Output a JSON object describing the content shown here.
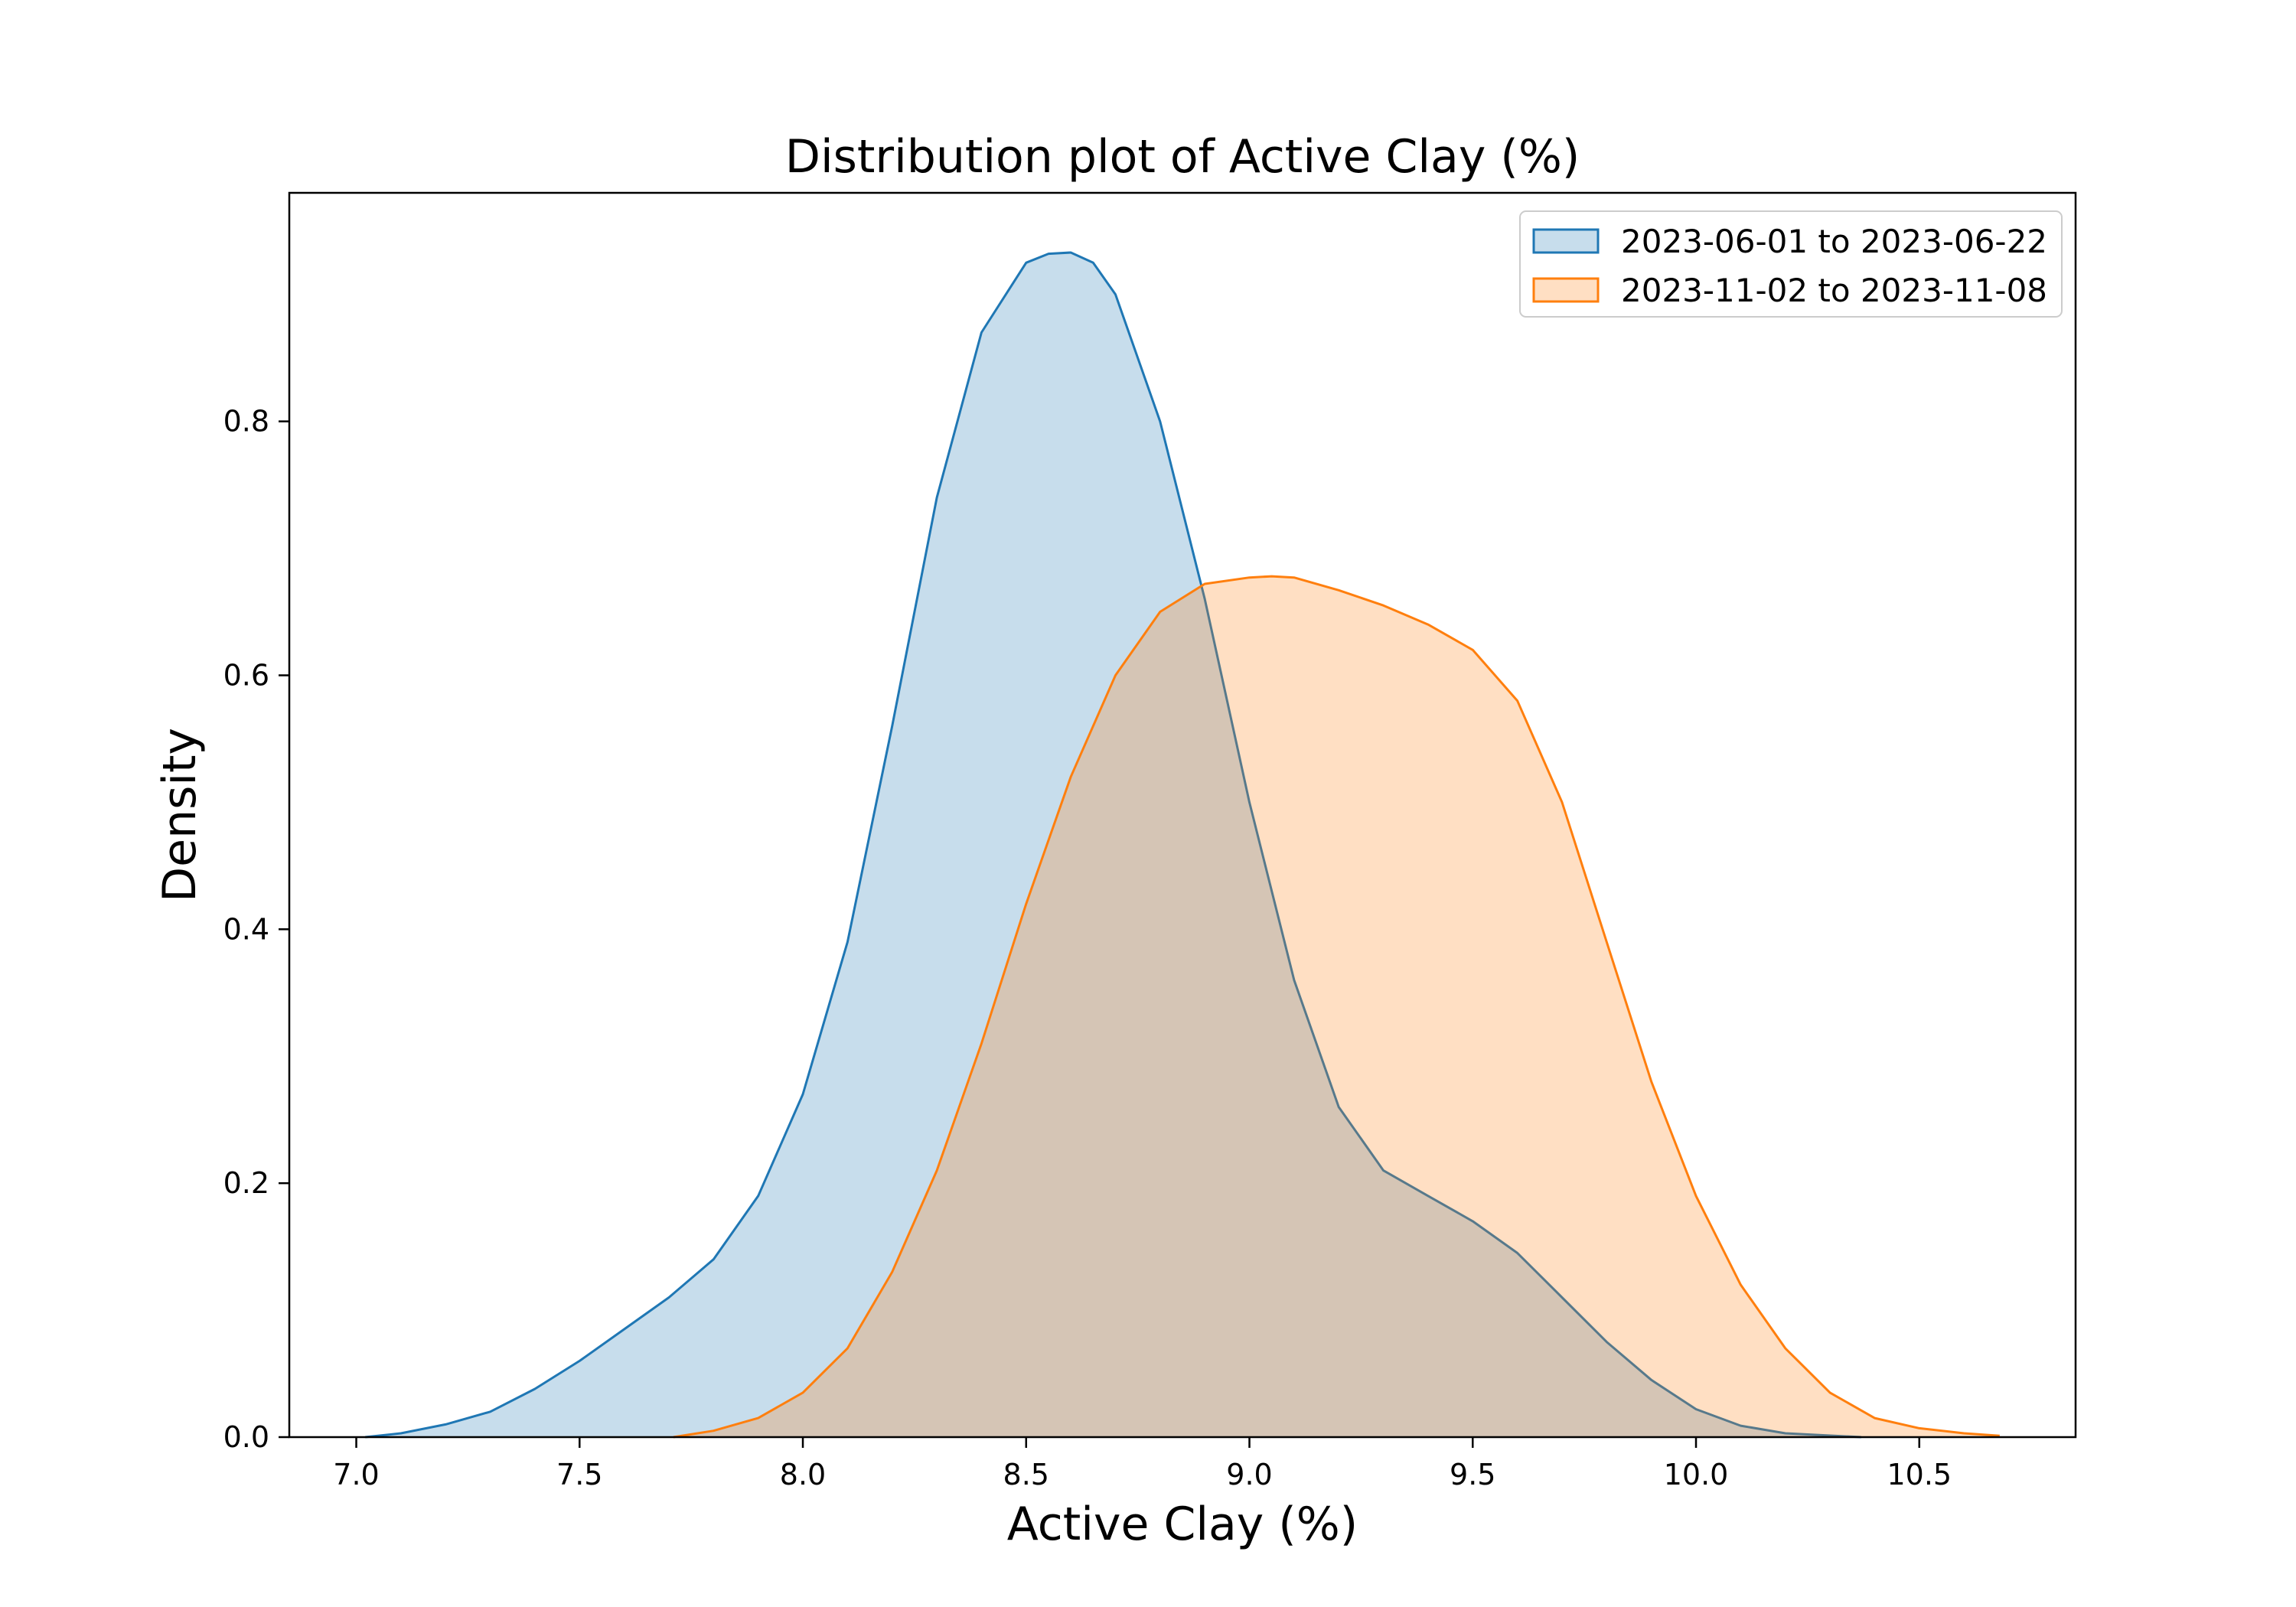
{
  "chart_data": {
    "type": "area",
    "title": "Distribution plot of Active Clay (%)",
    "xlabel": "Active Clay (%)",
    "ylabel": "Density",
    "xlim": [
      6.85,
      10.85
    ],
    "ylim": [
      0,
      0.98
    ],
    "xticks": [
      7.0,
      7.5,
      8.0,
      8.5,
      9.0,
      9.5,
      10.0,
      10.5
    ],
    "xtick_labels": [
      "7.0",
      "7.5",
      "8.0",
      "8.5",
      "9.0",
      "9.5",
      "10.0",
      "10.5"
    ],
    "yticks": [
      0.0,
      0.2,
      0.4,
      0.6,
      0.8
    ],
    "ytick_labels": [
      "0.0",
      "0.2",
      "0.4",
      "0.6",
      "0.8"
    ],
    "grid": false,
    "legend_position": "top-right",
    "series": [
      {
        "name": "2023-06-01 to 2023-06-22",
        "line_color": "#1f77b4",
        "fill_color": "#1f77b4",
        "fill_opacity": 0.25,
        "x": [
          7.02,
          7.1,
          7.2,
          7.3,
          7.4,
          7.5,
          7.6,
          7.7,
          7.8,
          7.9,
          8.0,
          8.1,
          8.2,
          8.3,
          8.4,
          8.5,
          8.55,
          8.6,
          8.65,
          8.7,
          8.8,
          8.9,
          9.0,
          9.1,
          9.2,
          9.3,
          9.4,
          9.5,
          9.6,
          9.7,
          9.8,
          9.9,
          10.0,
          10.1,
          10.2,
          10.37
        ],
        "y": [
          0.0,
          0.003,
          0.01,
          0.02,
          0.038,
          0.06,
          0.085,
          0.11,
          0.14,
          0.19,
          0.27,
          0.39,
          0.56,
          0.74,
          0.87,
          0.925,
          0.932,
          0.933,
          0.925,
          0.9,
          0.8,
          0.66,
          0.5,
          0.36,
          0.26,
          0.21,
          0.19,
          0.17,
          0.145,
          0.11,
          0.075,
          0.045,
          0.022,
          0.009,
          0.003,
          0.0
        ]
      },
      {
        "name": "2023-11-02 to 2023-11-08",
        "line_color": "#ff7f0e",
        "fill_color": "#ff7f0e",
        "fill_opacity": 0.25,
        "x": [
          7.71,
          7.8,
          7.9,
          8.0,
          8.1,
          8.2,
          8.3,
          8.4,
          8.5,
          8.6,
          8.7,
          8.8,
          8.9,
          9.0,
          9.05,
          9.1,
          9.2,
          9.3,
          9.4,
          9.5,
          9.6,
          9.7,
          9.8,
          9.9,
          10.0,
          10.1,
          10.2,
          10.3,
          10.4,
          10.5,
          10.6,
          10.68
        ],
        "y": [
          0.0,
          0.005,
          0.015,
          0.035,
          0.07,
          0.13,
          0.21,
          0.31,
          0.42,
          0.52,
          0.6,
          0.65,
          0.672,
          0.677,
          0.678,
          0.677,
          0.667,
          0.655,
          0.64,
          0.62,
          0.58,
          0.5,
          0.39,
          0.28,
          0.19,
          0.12,
          0.07,
          0.035,
          0.015,
          0.007,
          0.003,
          0.001
        ]
      }
    ]
  }
}
